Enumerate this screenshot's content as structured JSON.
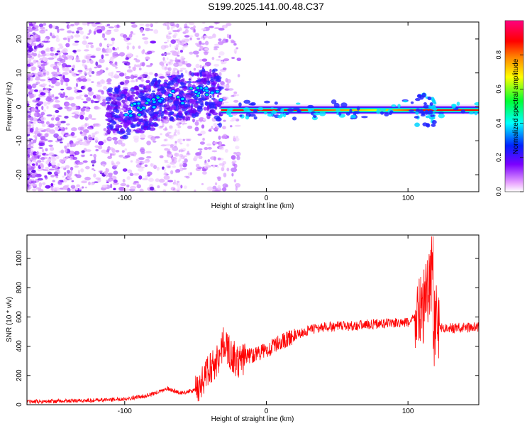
{
  "title": "S199.2025.141.00.48.C37",
  "chart_data": [
    {
      "type": "heatmap",
      "xlabel": "Height of straight line (km)",
      "ylabel": "Frequency (Hz)",
      "xlim": [
        -169,
        150
      ],
      "ylim": [
        -25,
        25
      ],
      "xticks": [
        -100,
        0,
        100
      ],
      "yticks": [
        -20,
        -10,
        0,
        10,
        20
      ],
      "grid": false,
      "colorbar": {
        "label": "Normalized spectral amplitude",
        "range": [
          0,
          1
        ],
        "ticks": [
          "0.0",
          "0.2",
          "0.4",
          "0.6",
          "0.8"
        ],
        "colors": [
          "#ffffff",
          "#e9a6ff",
          "#7b00ff",
          "#0022ff",
          "#00ffff",
          "#00ff33",
          "#ffff00",
          "#ff7f00",
          "#ff0000",
          "#ff007f"
        ]
      },
      "ridge": [
        [
          -100,
          -2
        ],
        [
          -85,
          0
        ],
        [
          -75,
          2
        ],
        [
          -60,
          3
        ],
        [
          -45,
          4
        ],
        [
          -36,
          4
        ],
        [
          -32,
          0
        ],
        [
          -20,
          -0.5
        ],
        [
          0,
          -1
        ],
        [
          60,
          -1
        ],
        [
          88,
          -1.5
        ],
        [
          100,
          -0.5
        ],
        [
          115,
          -1
        ],
        [
          150,
          -1
        ]
      ]
    },
    {
      "type": "line",
      "xlabel": "Height of straight line (km)",
      "ylabel": "SNR (10 * v/v)",
      "xlim": [
        -169,
        150
      ],
      "ylim": [
        0,
        1160
      ],
      "xticks": [
        -100,
        0,
        100
      ],
      "yticks": [
        0,
        200,
        400,
        600,
        800,
        1000
      ],
      "grid": false,
      "series": [
        {
          "color": "#ff0000",
          "x": [
            -169,
            -140,
            -120,
            -100,
            -85,
            -75,
            -70,
            -60,
            -50,
            -45,
            -40,
            -35,
            -30,
            -25,
            -20,
            -15,
            -10,
            0,
            10,
            20,
            30,
            40,
            60,
            80,
            100,
            105,
            110,
            113,
            115,
            117,
            118,
            120,
            125,
            135,
            150
          ],
          "values": [
            20,
            25,
            30,
            40,
            60,
            90,
            110,
            80,
            100,
            160,
            250,
            300,
            420,
            350,
            280,
            330,
            340,
            370,
            430,
            470,
            510,
            530,
            540,
            555,
            560,
            600,
            650,
            720,
            800,
            900,
            500,
            560,
            520,
            525,
            530
          ]
        }
      ]
    }
  ]
}
